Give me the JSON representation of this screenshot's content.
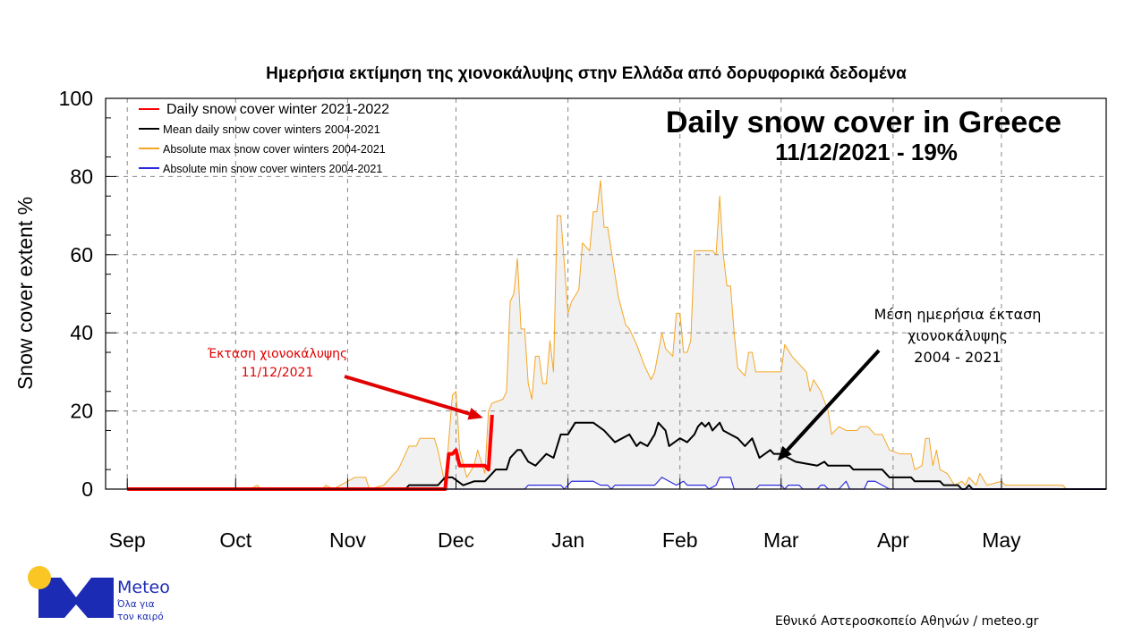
{
  "title": "Ημερήσια εκτίμηση της χιονοκάλυψης στην Ελλάδα από δορυφορικά δεδομένα",
  "chart_data": {
    "type": "line",
    "title": "Daily snow cover in Greece",
    "subtitle": "11/12/2021 - 19%",
    "ylabel": "Snow cover extent %",
    "xlabel": "",
    "ylim": [
      0,
      100
    ],
    "yticks": [
      0,
      20,
      40,
      60,
      80,
      100
    ],
    "xlim": [
      "2021-08-26",
      "2022-05-30"
    ],
    "xticks": [
      {
        "date": "2021-09-01",
        "label": "Sep"
      },
      {
        "date": "2021-10-01",
        "label": "Oct"
      },
      {
        "date": "2021-11-01",
        "label": "Nov"
      },
      {
        "date": "2021-12-01",
        "label": "Dec"
      },
      {
        "date": "2022-01-01",
        "label": "Jan"
      },
      {
        "date": "2022-02-01",
        "label": "Feb"
      },
      {
        "date": "2022-03-01",
        "label": "Mar"
      },
      {
        "date": "2022-04-01",
        "label": "Apr"
      },
      {
        "date": "2022-05-01",
        "label": "May"
      }
    ],
    "grid": true,
    "legend_position": "top-left",
    "max_fill_color": "#f1f1f1",
    "series": [
      {
        "name": "Absolute max snow cover winters 2004-2021",
        "color": "#f5a623",
        "points": [
          [
            "2021-09-01",
            0
          ],
          [
            "2021-10-05",
            0
          ],
          [
            "2021-10-07",
            1
          ],
          [
            "2021-10-08",
            0
          ],
          [
            "2021-10-25",
            0
          ],
          [
            "2021-10-26",
            1
          ],
          [
            "2021-10-28",
            0
          ],
          [
            "2021-11-03",
            3
          ],
          [
            "2021-11-06",
            3
          ],
          [
            "2021-11-07",
            0
          ],
          [
            "2021-11-11",
            1
          ],
          [
            "2021-11-15",
            5
          ],
          [
            "2021-11-18",
            11
          ],
          [
            "2021-11-20",
            11
          ],
          [
            "2021-11-21",
            13
          ],
          [
            "2021-11-25",
            13
          ],
          [
            "2021-11-26",
            10
          ],
          [
            "2021-11-28",
            1
          ],
          [
            "2021-11-30",
            24
          ],
          [
            "2021-12-01",
            25
          ],
          [
            "2021-12-02",
            10
          ],
          [
            "2021-12-04",
            3
          ],
          [
            "2021-12-06",
            6
          ],
          [
            "2021-12-07",
            10
          ],
          [
            "2021-12-09",
            4
          ],
          [
            "2021-12-10",
            20
          ],
          [
            "2021-12-11",
            22
          ],
          [
            "2021-12-14",
            23
          ],
          [
            "2021-12-15",
            25
          ],
          [
            "2021-12-16",
            48
          ],
          [
            "2021-12-17",
            50
          ],
          [
            "2021-12-18",
            59
          ],
          [
            "2021-12-19",
            41
          ],
          [
            "2021-12-20",
            41
          ],
          [
            "2021-12-21",
            27
          ],
          [
            "2021-12-22",
            23
          ],
          [
            "2021-12-23",
            34
          ],
          [
            "2021-12-24",
            34
          ],
          [
            "2021-12-25",
            27
          ],
          [
            "2021-12-26",
            27
          ],
          [
            "2021-12-27",
            38
          ],
          [
            "2021-12-28",
            30
          ],
          [
            "2021-12-29",
            70
          ],
          [
            "2021-12-30",
            70
          ],
          [
            "2022-01-01",
            45
          ],
          [
            "2022-01-02",
            48
          ],
          [
            "2022-01-04",
            51
          ],
          [
            "2022-01-05",
            63
          ],
          [
            "2022-01-07",
            61
          ],
          [
            "2022-01-08",
            71
          ],
          [
            "2022-01-09",
            71
          ],
          [
            "2022-01-10",
            79
          ],
          [
            "2022-01-11",
            67
          ],
          [
            "2022-01-12",
            67
          ],
          [
            "2022-01-14",
            55
          ],
          [
            "2022-01-15",
            49
          ],
          [
            "2022-01-17",
            42
          ],
          [
            "2022-01-18",
            41
          ],
          [
            "2022-01-20",
            37
          ],
          [
            "2022-01-22",
            32
          ],
          [
            "2022-01-24",
            28
          ],
          [
            "2022-01-25",
            30
          ],
          [
            "2022-01-27",
            40
          ],
          [
            "2022-01-28",
            36
          ],
          [
            "2022-01-30",
            34
          ],
          [
            "2022-01-31",
            45
          ],
          [
            "2022-02-01",
            45
          ],
          [
            "2022-02-02",
            35
          ],
          [
            "2022-02-03",
            35
          ],
          [
            "2022-02-04",
            38
          ],
          [
            "2022-02-05",
            61
          ],
          [
            "2022-02-10",
            61
          ],
          [
            "2022-02-11",
            60
          ],
          [
            "2022-02-12",
            75
          ],
          [
            "2022-02-13",
            60
          ],
          [
            "2022-02-14",
            52
          ],
          [
            "2022-02-15",
            52
          ],
          [
            "2022-02-16",
            40
          ],
          [
            "2022-02-17",
            31
          ],
          [
            "2022-02-19",
            29
          ],
          [
            "2022-02-20",
            35
          ],
          [
            "2022-02-21",
            35
          ],
          [
            "2022-02-22",
            30
          ],
          [
            "2022-03-01",
            30
          ],
          [
            "2022-03-02",
            37
          ],
          [
            "2022-03-04",
            34
          ],
          [
            "2022-03-06",
            32
          ],
          [
            "2022-03-08",
            30
          ],
          [
            "2022-03-09",
            25
          ],
          [
            "2022-03-10",
            28
          ],
          [
            "2022-03-12",
            25
          ],
          [
            "2022-03-14",
            20
          ],
          [
            "2022-03-15",
            14
          ],
          [
            "2022-03-17",
            16
          ],
          [
            "2022-03-19",
            15
          ],
          [
            "2022-03-22",
            15
          ],
          [
            "2022-03-23",
            16
          ],
          [
            "2022-03-25",
            16
          ],
          [
            "2022-03-27",
            14
          ],
          [
            "2022-03-29",
            14
          ],
          [
            "2022-03-31",
            10
          ],
          [
            "2022-04-03",
            9
          ],
          [
            "2022-04-06",
            9
          ],
          [
            "2022-04-07",
            5
          ],
          [
            "2022-04-09",
            6
          ],
          [
            "2022-04-10",
            13
          ],
          [
            "2022-04-11",
            13
          ],
          [
            "2022-04-12",
            6
          ],
          [
            "2022-04-13",
            10
          ],
          [
            "2022-04-14",
            5
          ],
          [
            "2022-04-16",
            4
          ],
          [
            "2022-04-18",
            1
          ],
          [
            "2022-04-20",
            2
          ],
          [
            "2022-04-21",
            1
          ],
          [
            "2022-04-22",
            3
          ],
          [
            "2022-04-24",
            1
          ],
          [
            "2022-04-25",
            4
          ],
          [
            "2022-04-27",
            1
          ],
          [
            "2022-05-01",
            2
          ],
          [
            "2022-05-02",
            1
          ],
          [
            "2022-05-18",
            1
          ],
          [
            "2022-05-19",
            0
          ],
          [
            "2022-05-30",
            0
          ]
        ]
      },
      {
        "name": "Mean daily snow cover winters 2004-2021",
        "color": "#000000",
        "points": [
          [
            "2021-09-01",
            0
          ],
          [
            "2021-11-17",
            0
          ],
          [
            "2021-11-18",
            1
          ],
          [
            "2021-11-26",
            1
          ],
          [
            "2021-11-28",
            3
          ],
          [
            "2021-11-30",
            3
          ],
          [
            "2021-12-03",
            1
          ],
          [
            "2021-12-06",
            2
          ],
          [
            "2021-12-09",
            2
          ],
          [
            "2021-12-10",
            3
          ],
          [
            "2021-12-12",
            5
          ],
          [
            "2021-12-15",
            5
          ],
          [
            "2021-12-16",
            8
          ],
          [
            "2021-12-18",
            10
          ],
          [
            "2021-12-19",
            10
          ],
          [
            "2021-12-21",
            7
          ],
          [
            "2021-12-23",
            6
          ],
          [
            "2021-12-25",
            8
          ],
          [
            "2021-12-26",
            9
          ],
          [
            "2021-12-28",
            8
          ],
          [
            "2021-12-30",
            14
          ],
          [
            "2022-01-01",
            14
          ],
          [
            "2022-01-03",
            17
          ],
          [
            "2022-01-08",
            17
          ],
          [
            "2022-01-11",
            15
          ],
          [
            "2022-01-14",
            12
          ],
          [
            "2022-01-16",
            13
          ],
          [
            "2022-01-18",
            14
          ],
          [
            "2022-01-20",
            11
          ],
          [
            "2022-01-21",
            12
          ],
          [
            "2022-01-23",
            11
          ],
          [
            "2022-01-25",
            14
          ],
          [
            "2022-01-26",
            17
          ],
          [
            "2022-01-28",
            15
          ],
          [
            "2022-01-29",
            11
          ],
          [
            "2022-02-01",
            13
          ],
          [
            "2022-02-03",
            12
          ],
          [
            "2022-02-05",
            14
          ],
          [
            "2022-02-06",
            16
          ],
          [
            "2022-02-07",
            17
          ],
          [
            "2022-02-08",
            16
          ],
          [
            "2022-02-09",
            17
          ],
          [
            "2022-02-10",
            15
          ],
          [
            "2022-02-12",
            17
          ],
          [
            "2022-02-13",
            15
          ],
          [
            "2022-02-15",
            14
          ],
          [
            "2022-02-17",
            13
          ],
          [
            "2022-02-19",
            11
          ],
          [
            "2022-02-21",
            13
          ],
          [
            "2022-02-23",
            8
          ],
          [
            "2022-02-26",
            10
          ],
          [
            "2022-02-27",
            9
          ],
          [
            "2022-03-01",
            9
          ],
          [
            "2022-03-05",
            7
          ],
          [
            "2022-03-11",
            6
          ],
          [
            "2022-03-13",
            7
          ],
          [
            "2022-03-14",
            6
          ],
          [
            "2022-03-20",
            6
          ],
          [
            "2022-03-21",
            5
          ],
          [
            "2022-03-29",
            5
          ],
          [
            "2022-03-31",
            3
          ],
          [
            "2022-04-06",
            3
          ],
          [
            "2022-04-07",
            2
          ],
          [
            "2022-04-14",
            2
          ],
          [
            "2022-04-15",
            1
          ],
          [
            "2022-04-19",
            1
          ],
          [
            "2022-04-20",
            0
          ],
          [
            "2022-04-21",
            0
          ],
          [
            "2022-04-22",
            1
          ],
          [
            "2022-04-23",
            0
          ],
          [
            "2022-05-30",
            0
          ]
        ]
      },
      {
        "name": "Absolute min snow cover winters 2004-2021",
        "color": "#2b2bdd",
        "points": [
          [
            "2021-09-01",
            0
          ],
          [
            "2021-12-20",
            0
          ],
          [
            "2021-12-21",
            1
          ],
          [
            "2021-12-30",
            1
          ],
          [
            "2021-12-31",
            0
          ],
          [
            "2022-01-02",
            2
          ],
          [
            "2022-01-08",
            2
          ],
          [
            "2022-01-10",
            1
          ],
          [
            "2022-01-12",
            1
          ],
          [
            "2022-01-13",
            0
          ],
          [
            "2022-01-14",
            1
          ],
          [
            "2022-01-25",
            1
          ],
          [
            "2022-01-27",
            3
          ],
          [
            "2022-01-29",
            2
          ],
          [
            "2022-01-31",
            1
          ],
          [
            "2022-02-02",
            2
          ],
          [
            "2022-02-03",
            1
          ],
          [
            "2022-02-08",
            1
          ],
          [
            "2022-02-09",
            0
          ],
          [
            "2022-02-11",
            1
          ],
          [
            "2022-02-12",
            3
          ],
          [
            "2022-02-15",
            3
          ],
          [
            "2022-02-16",
            0
          ],
          [
            "2022-02-22",
            0
          ],
          [
            "2022-02-23",
            1
          ],
          [
            "2022-03-01",
            1
          ],
          [
            "2022-03-02",
            0
          ],
          [
            "2022-03-03",
            1
          ],
          [
            "2022-03-06",
            1
          ],
          [
            "2022-03-07",
            0
          ],
          [
            "2022-03-11",
            0
          ],
          [
            "2022-03-12",
            1
          ],
          [
            "2022-03-13",
            1
          ],
          [
            "2022-03-14",
            0
          ],
          [
            "2022-03-17",
            0
          ],
          [
            "2022-03-18",
            1
          ],
          [
            "2022-03-19",
            2
          ],
          [
            "2022-03-20",
            0
          ],
          [
            "2022-03-24",
            0
          ],
          [
            "2022-03-25",
            2
          ],
          [
            "2022-03-27",
            2
          ],
          [
            "2022-03-29",
            1
          ],
          [
            "2022-03-31",
            0
          ],
          [
            "2022-05-30",
            0
          ]
        ]
      },
      {
        "name": "Daily snow cover winter 2021-2022",
        "color": "#ff0000",
        "points": [
          [
            "2021-09-01",
            0
          ],
          [
            "2021-11-28",
            0
          ],
          [
            "2021-11-29",
            9
          ],
          [
            "2021-11-30",
            9
          ],
          [
            "2021-12-01",
            10
          ],
          [
            "2021-12-02",
            6
          ],
          [
            "2021-12-09",
            6
          ],
          [
            "2021-12-10",
            5
          ],
          [
            "2021-12-11",
            19
          ]
        ]
      }
    ],
    "annotations": [
      {
        "text": [
          "Έκταση χιονοκάλυψης",
          "11/12/2021"
        ],
        "color": "#e00000",
        "arrow_to": [
          "2021-12-08",
          21
        ]
      },
      {
        "text": [
          "Μέση ημερήσια έκταση",
          "χιονοκάλυψης",
          "2004 - 2021"
        ],
        "color": "#000000",
        "arrow_to": [
          "2022-03-01",
          10
        ]
      }
    ]
  },
  "logo": {
    "name": "Meteo",
    "tagline_1": "Όλα για",
    "tagline_2": "τον καιρό",
    "blue": "#1c2bb4",
    "yellow": "#f9c623"
  },
  "credit": "Εθνικό Αστεροσκοπείο Αθηνών / meteo.gr"
}
